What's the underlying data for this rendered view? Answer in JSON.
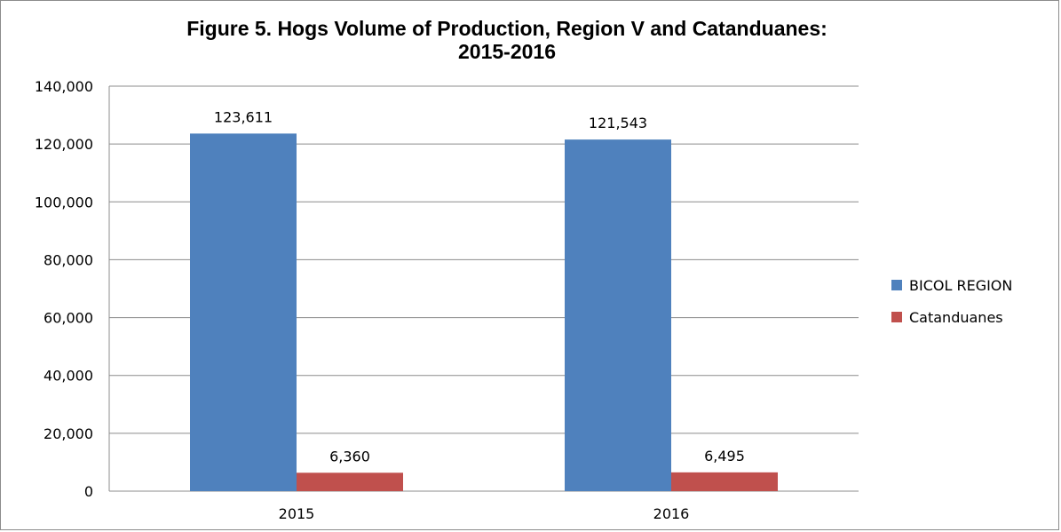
{
  "chart_data": {
    "type": "bar",
    "title_lines": [
      "Figure 5. Hogs Volume of Production, Region V and Catanduanes:",
      "2015-2016"
    ],
    "categories": [
      "2015",
      "2016"
    ],
    "series": [
      {
        "name": "BICOL REGION",
        "values": [
          123611,
          121543
        ],
        "labels": [
          "123,611",
          "121,543"
        ],
        "color": "#4f81bd"
      },
      {
        "name": "Catanduanes",
        "values": [
          6360,
          6495
        ],
        "labels": [
          "6,360",
          "6,495"
        ],
        "color": "#c0504d"
      }
    ],
    "ylim": [
      0,
      140000
    ],
    "yticks": [
      0,
      20000,
      40000,
      60000,
      80000,
      100000,
      120000,
      140000
    ],
    "ytick_labels": [
      "0",
      "20,000",
      "40,000",
      "60,000",
      "80,000",
      "100,000",
      "120,000",
      "140,000"
    ],
    "xlabel": "",
    "ylabel": "",
    "grid": true,
    "legend_position": "right"
  }
}
